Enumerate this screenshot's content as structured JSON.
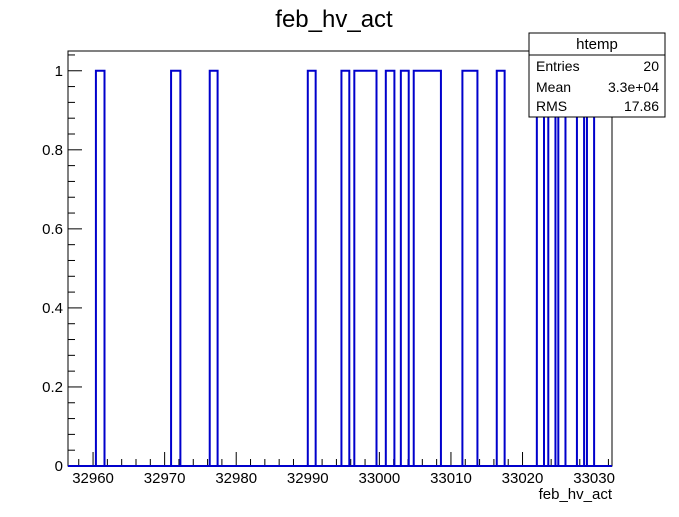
{
  "chart_data": {
    "type": "histogram-step",
    "title": "feb_hv_act",
    "xlabel": "feb_hv_act",
    "ylabel": "",
    "xlim": [
      32956.5,
      33032.5
    ],
    "ylim": [
      0,
      1.05
    ],
    "x_ticks": [
      32960,
      32970,
      32980,
      32990,
      33000,
      33010,
      33020,
      33030
    ],
    "x_tick_labels": [
      "32960",
      "32970",
      "32980",
      "32990",
      "33000",
      "33010",
      "33020",
      "33030"
    ],
    "y_ticks": [
      0,
      0.2,
      0.4,
      0.6,
      0.8,
      1
    ],
    "y_tick_labels": [
      "0",
      "0.2",
      "0.4",
      "0.6",
      "0.8",
      "1"
    ],
    "line_color": "#0000cc",
    "bins": [
      {
        "x_low": 32960.4,
        "x_high": 32961.6,
        "value": 1
      },
      {
        "x_low": 32970.9,
        "x_high": 32972.2,
        "value": 1
      },
      {
        "x_low": 32976.3,
        "x_high": 32977.4,
        "value": 1
      },
      {
        "x_low": 32990.0,
        "x_high": 32991.1,
        "value": 1
      },
      {
        "x_low": 32994.7,
        "x_high": 32995.8,
        "value": 1
      },
      {
        "x_low": 32996.5,
        "x_high": 32999.6,
        "value": 1
      },
      {
        "x_low": 33000.9,
        "x_high": 33002.1,
        "value": 1
      },
      {
        "x_low": 33003.0,
        "x_high": 33004.1,
        "value": 1
      },
      {
        "x_low": 33004.8,
        "x_high": 33008.6,
        "value": 1
      },
      {
        "x_low": 33011.6,
        "x_high": 33013.7,
        "value": 1
      },
      {
        "x_low": 33016.4,
        "x_high": 33017.5,
        "value": 1
      },
      {
        "x_low": 33022.0,
        "x_high": 33023.0,
        "value": 1
      },
      {
        "x_low": 33023.6,
        "x_high": 33024.6,
        "value": 1
      },
      {
        "x_low": 33025.0,
        "x_high": 33026.0,
        "value": 1
      },
      {
        "x_low": 33027.6,
        "x_high": 33028.6,
        "value": 1
      },
      {
        "x_low": 33029.0,
        "x_high": 33030.0,
        "value": 1
      }
    ],
    "stats": {
      "name": "htemp",
      "rows": [
        {
          "label": "Entries",
          "value": "20"
        },
        {
          "label": "Mean",
          "value": "3.3e+04"
        },
        {
          "label": "RMS",
          "value": "17.86"
        }
      ]
    }
  }
}
